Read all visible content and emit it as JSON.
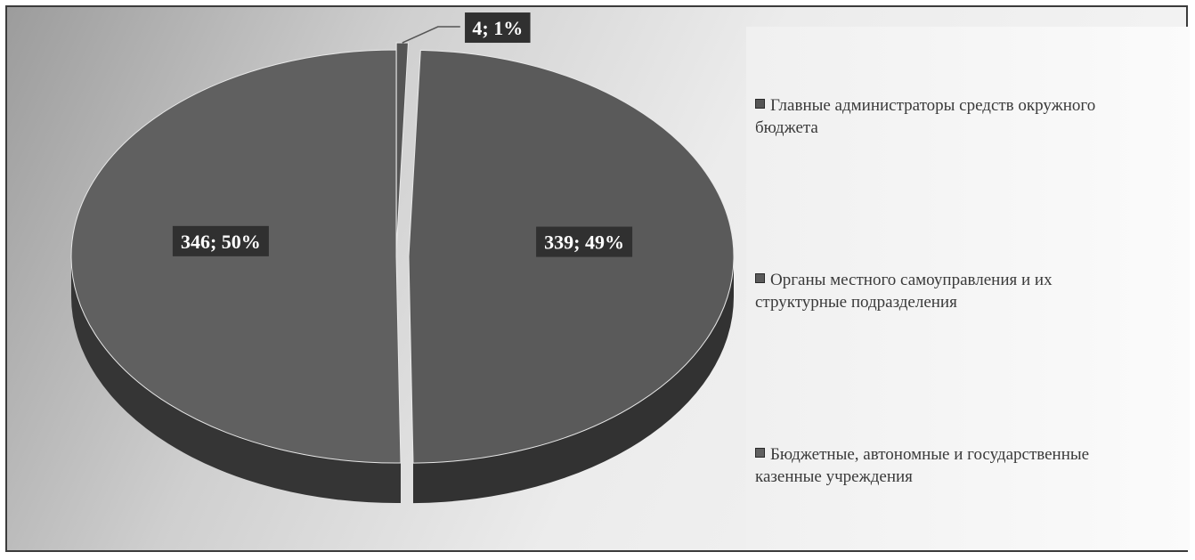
{
  "chart_data": {
    "type": "pie",
    "title": "",
    "categories": [
      "Главные администраторы средств окружного бюджета",
      "Органы местного самоуправления и их структурные подразделения",
      "Бюджетные, автономные и государственные казенные учреждения"
    ],
    "values": [
      4,
      339,
      346
    ],
    "percents": [
      1,
      49,
      50
    ],
    "data_labels": [
      "4; 1%",
      "339; 49%",
      "346; 50%"
    ],
    "colors": [
      "#555555",
      "#5a5a5a",
      "#606060"
    ],
    "exploded": true,
    "style": "3d",
    "legend_position": "right"
  },
  "legend": {
    "items": [
      {
        "line1": "Главные администраторы средств окружного",
        "line2": "бюджета"
      },
      {
        "line1": "Органы местного самоуправления и их",
        "line2": "структурные подразделения"
      },
      {
        "line1": "Бюджетные, автономные и государственные",
        "line2": "казенные учреждения"
      }
    ]
  }
}
